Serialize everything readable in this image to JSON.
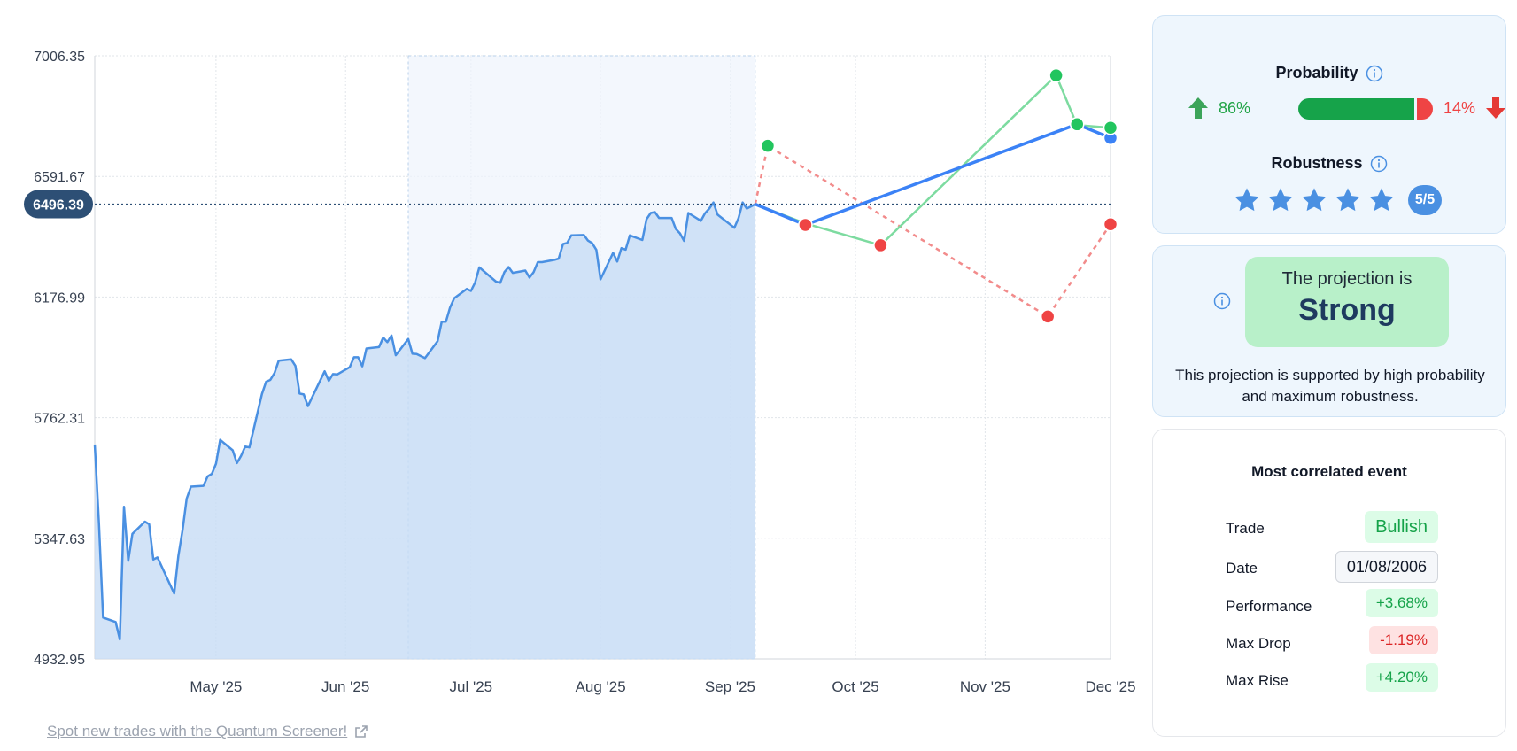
{
  "link": {
    "label": "Spot new trades with the Quantum Screener!",
    "icon": "external-link-icon"
  },
  "colors": {
    "price_line": "#4a90e2",
    "area_fill": "#c7dcf5",
    "current_badge": "#2d4f75",
    "bullish": "#22c55e",
    "bearish": "#ef4444",
    "projection": "#3b82f6"
  },
  "chart_data": {
    "type": "line",
    "y_ticks": [
      "7006.35",
      "6591.67",
      "6176.99",
      "5762.31",
      "5347.63",
      "4932.95"
    ],
    "ylim": [
      4932.95,
      7006.35
    ],
    "x_ticks": [
      "May '25",
      "Jun '25",
      "Jul '25",
      "Aug '25",
      "Sep '25",
      "Oct '25",
      "Nov '25",
      "Dec '25"
    ],
    "x_domain": [
      "2025-04-02",
      "2025-12-01"
    ],
    "current_price": "6496.39",
    "highlight_range": [
      "2025-06-16",
      "2025-09-07"
    ],
    "grid": true,
    "history": [
      [
        "2025-04-02",
        5670
      ],
      [
        "2025-04-03",
        5400
      ],
      [
        "2025-04-04",
        5075
      ],
      [
        "2025-04-07",
        5060
      ],
      [
        "2025-04-08",
        5000
      ],
      [
        "2025-04-09",
        5456
      ],
      [
        "2025-04-10",
        5270
      ],
      [
        "2025-04-11",
        5363
      ],
      [
        "2025-04-14",
        5405
      ],
      [
        "2025-04-15",
        5396
      ],
      [
        "2025-04-16",
        5275
      ],
      [
        "2025-04-17",
        5282
      ],
      [
        "2025-04-21",
        5158
      ],
      [
        "2025-04-22",
        5287
      ],
      [
        "2025-04-23",
        5375
      ],
      [
        "2025-04-24",
        5484
      ],
      [
        "2025-04-25",
        5525
      ],
      [
        "2025-04-28",
        5528
      ],
      [
        "2025-04-29",
        5560
      ],
      [
        "2025-04-30",
        5569
      ],
      [
        "2025-05-01",
        5604
      ],
      [
        "2025-05-02",
        5686
      ],
      [
        "2025-05-05",
        5650
      ],
      [
        "2025-05-06",
        5606
      ],
      [
        "2025-05-07",
        5631
      ],
      [
        "2025-05-08",
        5663
      ],
      [
        "2025-05-09",
        5660
      ],
      [
        "2025-05-12",
        5844
      ],
      [
        "2025-05-13",
        5886
      ],
      [
        "2025-05-14",
        5892
      ],
      [
        "2025-05-15",
        5916
      ],
      [
        "2025-05-16",
        5958
      ],
      [
        "2025-05-19",
        5963
      ],
      [
        "2025-05-20",
        5940
      ],
      [
        "2025-05-21",
        5845
      ],
      [
        "2025-05-22",
        5842
      ],
      [
        "2025-05-23",
        5802
      ],
      [
        "2025-05-27",
        5922
      ],
      [
        "2025-05-28",
        5889
      ],
      [
        "2025-05-29",
        5912
      ],
      [
        "2025-05-30",
        5911
      ],
      [
        "2025-06-02",
        5936
      ],
      [
        "2025-06-03",
        5970
      ],
      [
        "2025-06-04",
        5970
      ],
      [
        "2025-06-05",
        5939
      ],
      [
        "2025-06-06",
        6000
      ],
      [
        "2025-06-09",
        6005
      ],
      [
        "2025-06-10",
        6038
      ],
      [
        "2025-06-11",
        6022
      ],
      [
        "2025-06-12",
        6045
      ],
      [
        "2025-06-13",
        5977
      ],
      [
        "2025-06-16",
        6033
      ],
      [
        "2025-06-17",
        5982
      ],
      [
        "2025-06-18",
        5981
      ],
      [
        "2025-06-20",
        5967
      ],
      [
        "2025-06-23",
        6025
      ],
      [
        "2025-06-24",
        6092
      ],
      [
        "2025-06-25",
        6092
      ],
      [
        "2025-06-26",
        6141
      ],
      [
        "2025-06-27",
        6173
      ],
      [
        "2025-06-30",
        6205
      ],
      [
        "2025-07-01",
        6198
      ],
      [
        "2025-07-02",
        6227
      ],
      [
        "2025-07-03",
        6279
      ],
      [
        "2025-07-07",
        6230
      ],
      [
        "2025-07-08",
        6226
      ],
      [
        "2025-07-09",
        6263
      ],
      [
        "2025-07-10",
        6280
      ],
      [
        "2025-07-11",
        6260
      ],
      [
        "2025-07-14",
        6268
      ],
      [
        "2025-07-15",
        6244
      ],
      [
        "2025-07-16",
        6263
      ],
      [
        "2025-07-17",
        6297
      ],
      [
        "2025-07-18",
        6297
      ],
      [
        "2025-07-21",
        6305
      ],
      [
        "2025-07-22",
        6309
      ],
      [
        "2025-07-23",
        6359
      ],
      [
        "2025-07-24",
        6363
      ],
      [
        "2025-07-25",
        6389
      ],
      [
        "2025-07-28",
        6390
      ],
      [
        "2025-07-29",
        6371
      ],
      [
        "2025-07-30",
        6362
      ],
      [
        "2025-07-31",
        6339
      ],
      [
        "2025-08-01",
        6238
      ],
      [
        "2025-08-04",
        6329
      ],
      [
        "2025-08-05",
        6299
      ],
      [
        "2025-08-06",
        6345
      ],
      [
        "2025-08-07",
        6340
      ],
      [
        "2025-08-08",
        6389
      ],
      [
        "2025-08-11",
        6373
      ],
      [
        "2025-08-12",
        6445
      ],
      [
        "2025-08-13",
        6466
      ],
      [
        "2025-08-14",
        6469
      ],
      [
        "2025-08-15",
        6449
      ],
      [
        "2025-08-18",
        6449
      ],
      [
        "2025-08-19",
        6411
      ],
      [
        "2025-08-20",
        6396
      ],
      [
        "2025-08-21",
        6370
      ],
      [
        "2025-08-22",
        6466
      ],
      [
        "2025-08-25",
        6439
      ],
      [
        "2025-08-26",
        6465
      ],
      [
        "2025-08-27",
        6481
      ],
      [
        "2025-08-28",
        6502
      ],
      [
        "2025-08-29",
        6460
      ],
      [
        "2025-09-02",
        6415
      ],
      [
        "2025-09-03",
        6448
      ],
      [
        "2025-09-04",
        6502
      ],
      [
        "2025-09-05",
        6481
      ],
      [
        "2025-09-07",
        6496
      ]
    ],
    "projections": [
      {
        "style": "solid-blue",
        "points": [
          [
            "2025-09-07",
            6496
          ],
          [
            "2025-09-19",
            6425
          ],
          [
            "2025-11-23",
            6771
          ],
          [
            "2025-12-01",
            6724
          ]
        ]
      },
      {
        "style": "solid-green",
        "points": [
          [
            "2025-09-07",
            6496
          ],
          [
            "2025-09-19",
            6430
          ],
          [
            "2025-10-07",
            6355
          ],
          [
            "2025-11-18",
            6939
          ],
          [
            "2025-11-23",
            6768
          ],
          [
            "2025-12-01",
            6759
          ]
        ]
      },
      {
        "style": "dashed-red",
        "points": [
          [
            "2025-09-07",
            6496
          ],
          [
            "2025-09-10",
            6697
          ],
          [
            "2025-11-16",
            6110
          ],
          [
            "2025-12-01",
            6427
          ]
        ]
      }
    ],
    "markers": [
      {
        "date": "2025-09-10",
        "value": 6697,
        "color": "green"
      },
      {
        "date": "2025-09-19",
        "value": 6425,
        "color": "red"
      },
      {
        "date": "2025-10-07",
        "value": 6355,
        "color": "red"
      },
      {
        "date": "2025-11-16",
        "value": 6110,
        "color": "red"
      },
      {
        "date": "2025-11-18",
        "value": 6939,
        "color": "green"
      },
      {
        "date": "2025-11-23",
        "value": 6771,
        "color": "green"
      },
      {
        "date": "2025-12-01",
        "value": 6724,
        "color": "blue"
      },
      {
        "date": "2025-12-01",
        "value": 6759,
        "color": "green"
      },
      {
        "date": "2025-12-01",
        "value": 6427,
        "color": "red"
      }
    ]
  },
  "probability": {
    "title": "Probability",
    "up_pct": "86%",
    "down_pct": "14%",
    "up_fraction": 0.86
  },
  "robustness": {
    "title": "Robustness",
    "rating": 5,
    "max": 5,
    "badge": "5/5"
  },
  "projection": {
    "line1": "The projection is",
    "line2": "Strong",
    "description": "This projection is supported by high probability and maximum robustness."
  },
  "event": {
    "title": "Most correlated event",
    "rows": [
      {
        "label": "Trade",
        "value": "Bullish",
        "kind": "bullish"
      },
      {
        "label": "Date",
        "value": "01/08/2006",
        "kind": "date"
      },
      {
        "label": "Performance",
        "value": "+3.68%",
        "kind": "pos"
      },
      {
        "label": "Max Drop",
        "value": "-1.19%",
        "kind": "neg"
      },
      {
        "label": "Max Rise",
        "value": "+4.20%",
        "kind": "pos"
      }
    ]
  }
}
